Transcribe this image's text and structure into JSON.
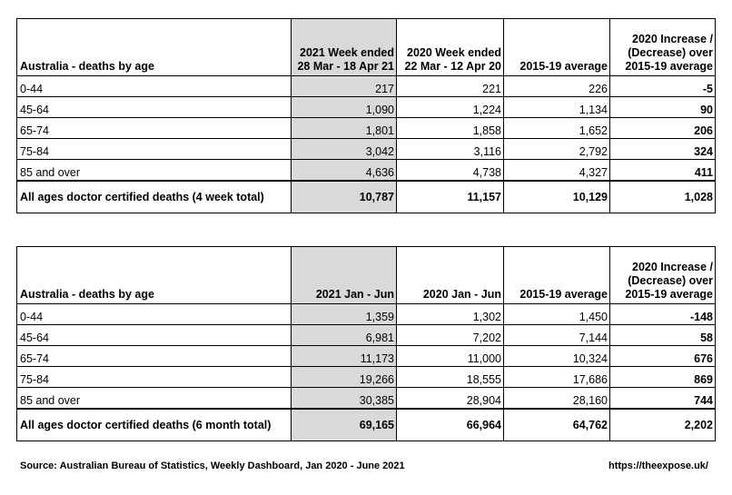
{
  "table1": {
    "headers": [
      "Australia - deaths by age",
      "2021 Week ended",
      "28 Mar - 18 Apr 21",
      "2020 Week ended",
      "22 Mar - 12 Apr 20",
      "2015-19 average",
      "2020 Increase /",
      "(Decrease) over",
      "2015-19 average"
    ],
    "rows": [
      [
        "0-44",
        "217",
        "221",
        "226",
        "-5"
      ],
      [
        "45-64",
        "1,090",
        "1,224",
        "1,134",
        "90"
      ],
      [
        "65-74",
        "1,801",
        "1,858",
        "1,652",
        "206"
      ],
      [
        "75-84",
        "3,042",
        "3,116",
        "2,792",
        "324"
      ],
      [
        "85 and over",
        "4,636",
        "4,738",
        "4,327",
        "411"
      ]
    ],
    "total": [
      "All ages doctor certified deaths (4 week total)",
      "10,787",
      "11,157",
      "10,129",
      "1,028"
    ]
  },
  "table2": {
    "headers": [
      "Australia - deaths by age",
      "2021 Jan - Jun",
      "2020 Jan - Jun",
      "2015-19 average",
      "2020 Increase /",
      "(Decrease) over",
      "2015-19 average"
    ],
    "rows": [
      [
        "0-44",
        "1,359",
        "1,302",
        "1,450",
        "-148"
      ],
      [
        "45-64",
        "6,981",
        "7,202",
        "7,144",
        "58"
      ],
      [
        "65-74",
        "11,173",
        "11,000",
        "10,324",
        "676"
      ],
      [
        "75-84",
        "19,266",
        "18,555",
        "17,686",
        "869"
      ],
      [
        "85 and over",
        "30,385",
        "28,904",
        "28,160",
        "744"
      ]
    ],
    "total": [
      "All ages doctor certified deaths (6 month total)",
      "69,165",
      "66,964",
      "64,762",
      "2,202"
    ]
  },
  "footer": {
    "source": "Source: Australian Bureau of Statistics, Weekly Dashboard, Jan 2020 - June 2021",
    "link": "https://theexpose.uk/"
  }
}
